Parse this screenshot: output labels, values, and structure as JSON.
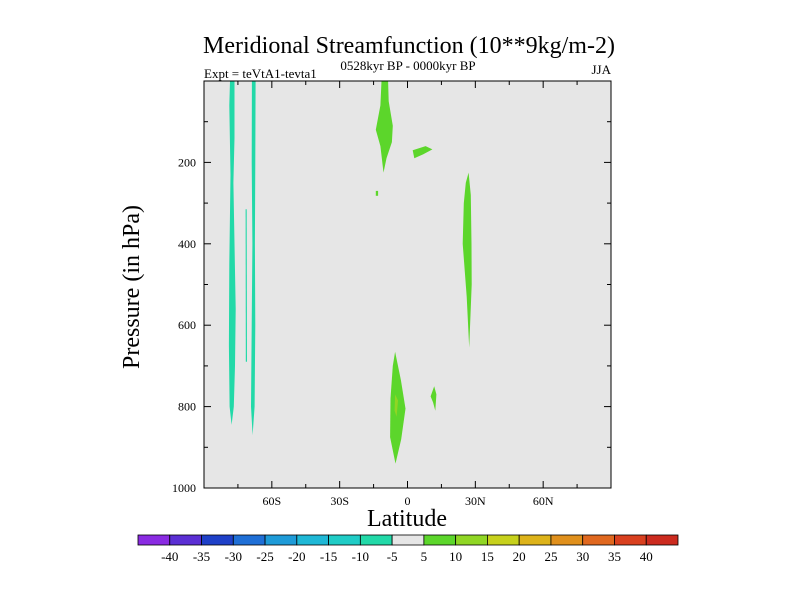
{
  "chart_data": {
    "type": "contour",
    "title": "Meridional Streamfunction (10**9kg/m-2)",
    "left_string": "Expt = teVtA1-tevta1",
    "center_string": "0528kyr BP - 0000kyr BP",
    "right_string": "JJA",
    "xlabel": "Latitude",
    "ylabel": "Pressure (in hPa)",
    "xlim": [
      -90,
      90
    ],
    "ylim": [
      1000,
      0
    ],
    "x_ticks": [
      {
        "value": -60,
        "label": "60S"
      },
      {
        "value": -30,
        "label": "30S"
      },
      {
        "value": 0,
        "label": "0"
      },
      {
        "value": 30,
        "label": "30N"
      },
      {
        "value": 60,
        "label": "60N"
      }
    ],
    "y_ticks": [
      {
        "value": 200,
        "label": "200"
      },
      {
        "value": 400,
        "label": "400"
      },
      {
        "value": 600,
        "label": "600"
      },
      {
        "value": 800,
        "label": "800"
      },
      {
        "value": 1000,
        "label": "1000"
      }
    ],
    "background_level_color": "#e6e6e6",
    "colorbar": {
      "levels": [
        "-40",
        "-35",
        "-30",
        "-25",
        "-20",
        "-15",
        "-10",
        "-5",
        "5",
        "10",
        "15",
        "20",
        "25",
        "30",
        "35",
        "40"
      ],
      "colors": [
        "#8a2be2",
        "#5b2fd4",
        "#1e40c8",
        "#1f6fd6",
        "#1e9bd8",
        "#1fb8d6",
        "#20ccc6",
        "#22d9a8",
        "#e6e6e6",
        "#5cd62b",
        "#90d624",
        "#c7d11c",
        "#ddb31a",
        "#e0901c",
        "#e0681f",
        "#d9401f",
        "#cc2b1f"
      ]
    },
    "regions": [
      {
        "name": "negative band near 77S",
        "value": -7,
        "points": [
          [
            -78.5,
            0
          ],
          [
            -76.5,
            0
          ],
          [
            -76.5,
            140
          ],
          [
            -77,
            250
          ],
          [
            -76.5,
            400
          ],
          [
            -76,
            560
          ],
          [
            -76.3,
            700
          ],
          [
            -76.8,
            800
          ],
          [
            -77.8,
            845
          ],
          [
            -78.7,
            800
          ],
          [
            -79,
            650
          ],
          [
            -78.8,
            450
          ],
          [
            -78.3,
            230
          ],
          [
            -78.8,
            60
          ]
        ]
      },
      {
        "name": "negative band near 68S",
        "value": -7,
        "points": [
          [
            -68.8,
            0
          ],
          [
            -67.2,
            0
          ],
          [
            -67.3,
            200
          ],
          [
            -67.5,
            400
          ],
          [
            -67.3,
            600
          ],
          [
            -67.6,
            800
          ],
          [
            -68.5,
            870
          ],
          [
            -69.2,
            800
          ],
          [
            -68.9,
            600
          ],
          [
            -68.6,
            400
          ],
          [
            -68.9,
            200
          ]
        ]
      },
      {
        "name": "weak negative sliver near 71S",
        "value": -6,
        "points": [
          [
            -71.6,
            315
          ],
          [
            -71.1,
            315
          ],
          [
            -71,
            690
          ],
          [
            -71.5,
            690
          ]
        ]
      },
      {
        "name": "upper positive cell near 10S",
        "value": 7,
        "points": [
          [
            -11.5,
            0
          ],
          [
            -8.6,
            0
          ],
          [
            -8.3,
            50
          ],
          [
            -6.5,
            110
          ],
          [
            -6.9,
            150
          ],
          [
            -9.3,
            190
          ],
          [
            -10.6,
            225
          ],
          [
            -12,
            160
          ],
          [
            -14,
            120
          ],
          [
            -12,
            60
          ]
        ]
      },
      {
        "name": "positive patch near 5N at 180 hPa",
        "value": 6,
        "points": [
          [
            2.3,
            170
          ],
          [
            8,
            160
          ],
          [
            11,
            168
          ],
          [
            7,
            180
          ],
          [
            3,
            190
          ]
        ]
      },
      {
        "name": "positive speck near 13S at 270 hPa",
        "value": 6,
        "points": [
          [
            -14,
            270
          ],
          [
            -13,
            270
          ],
          [
            -13,
            282
          ],
          [
            -14,
            282
          ]
        ]
      },
      {
        "name": "positive cell near 27N",
        "value": 7,
        "points": [
          [
            25.8,
            250
          ],
          [
            27,
            225
          ],
          [
            28,
            280
          ],
          [
            28.3,
            400
          ],
          [
            28.4,
            500
          ],
          [
            27.3,
            655
          ],
          [
            26.2,
            530
          ],
          [
            24.4,
            400
          ],
          [
            24.9,
            300
          ]
        ]
      },
      {
        "name": "lower positive cell near 5S",
        "value": 8,
        "points": [
          [
            -5.5,
            665
          ],
          [
            -2.9,
            735
          ],
          [
            -0.9,
            805
          ],
          [
            -2.8,
            880
          ],
          [
            -5.3,
            940
          ],
          [
            -7.7,
            875
          ],
          [
            -7.5,
            780
          ],
          [
            -6.5,
            700
          ]
        ]
      },
      {
        "name": "lower positive core near 5S",
        "value": 11,
        "points": [
          [
            -5.5,
            770
          ],
          [
            -4.2,
            785
          ],
          [
            -4.8,
            825
          ],
          [
            -5.7,
            810
          ]
        ]
      },
      {
        "name": "small positive patch near 12N at 780 hPa",
        "value": 6,
        "points": [
          [
            11.8,
            750
          ],
          [
            12.8,
            770
          ],
          [
            12.3,
            810
          ],
          [
            11.3,
            790
          ],
          [
            10.2,
            775
          ]
        ]
      }
    ]
  }
}
